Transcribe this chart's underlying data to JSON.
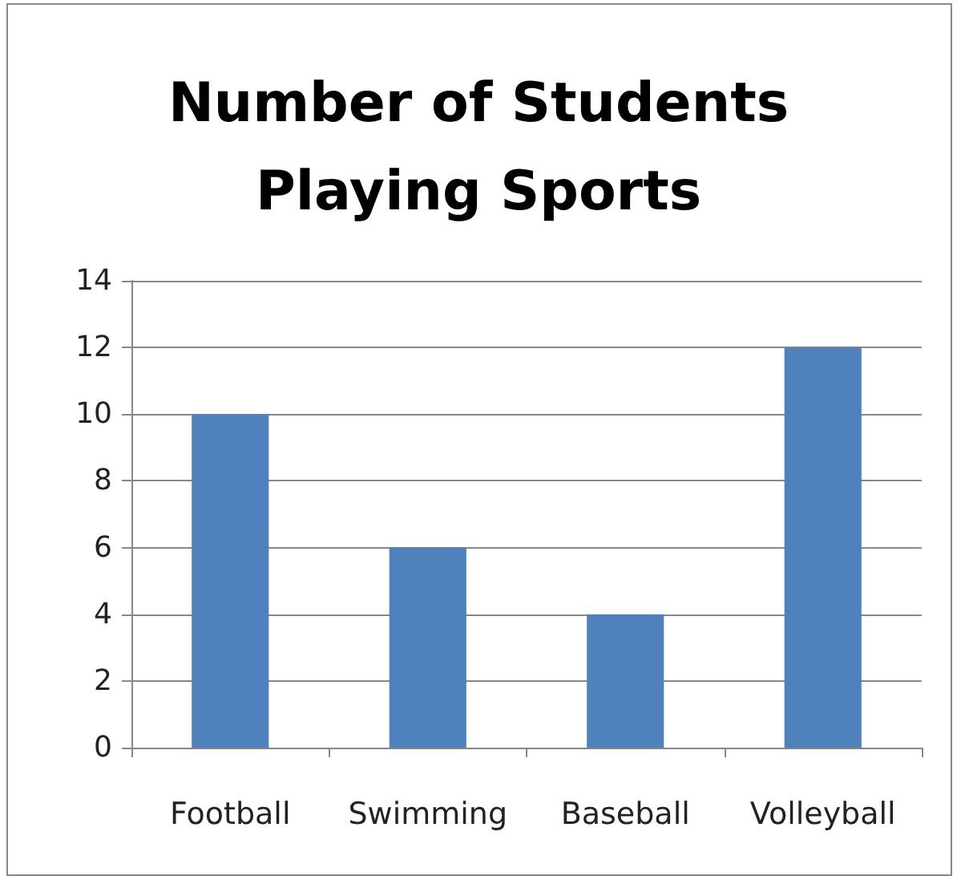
{
  "chart_data": {
    "type": "bar",
    "title": "Number of Students\nPlaying Sports",
    "categories": [
      "Football",
      "Swimming",
      "Baseball",
      "Volleyball"
    ],
    "values": [
      10,
      6,
      4,
      12
    ],
    "color": "#4f81bd",
    "ylim": [
      0,
      14
    ],
    "yticks": [
      0,
      2,
      4,
      6,
      8,
      10,
      12,
      14
    ],
    "grid": "y"
  }
}
